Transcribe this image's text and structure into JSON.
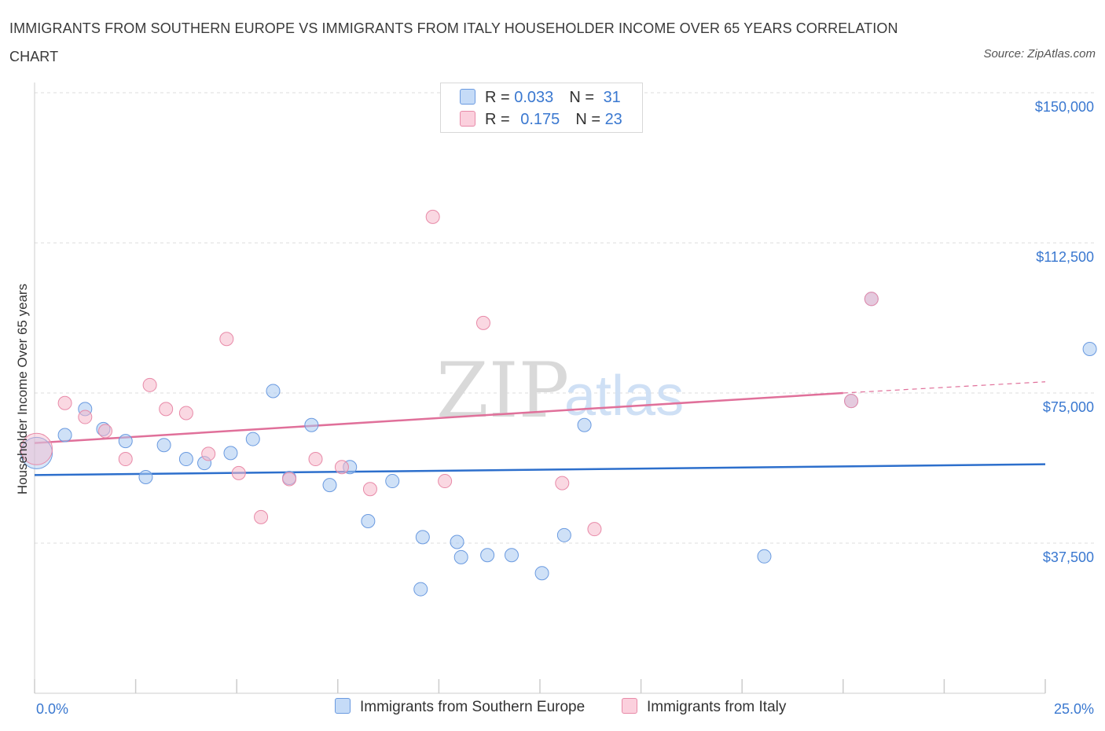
{
  "title": "IMMIGRANTS FROM SOUTHERN EUROPE VS IMMIGRANTS FROM ITALY HOUSEHOLDER INCOME OVER 65 YEARS CORRELATION CHART",
  "source": "Source: ZipAtlas.com",
  "watermark": {
    "zip": "ZIP",
    "atlas": "atlas"
  },
  "legend_top": [
    {
      "r_label": "R = ",
      "r_value": "0.033",
      "n_label": "N = ",
      "n_value": "31",
      "color": "#a8c8f0"
    },
    {
      "r_label": "R = ",
      "r_value": "0.175",
      "n_label": "N = ",
      "n_value": "23",
      "color": "#f5b8cb"
    }
  ],
  "chart_data": {
    "type": "scatter",
    "ylabel": "Householder Income Over 65 years",
    "xlim": [
      0,
      25
    ],
    "ylim": [
      0,
      150000
    ],
    "x_tick_labels": [
      "0.0%",
      "25.0%"
    ],
    "y_ticks": [
      37500,
      75000,
      112500,
      150000
    ],
    "y_tick_labels": [
      "$37,500",
      "$75,000",
      "$112,500",
      "$150,000"
    ],
    "grid": "horizontal dashed",
    "legend_position": "top-center",
    "series": [
      {
        "name": "Immigrants from Southern Europe",
        "color": "#a8c8f0",
        "stroke": "#6a9ae0",
        "trend_color": "#2d6fcc",
        "trend": {
          "x": [
            0,
            25
          ],
          "y": [
            54500,
            57200
          ]
        },
        "points": [
          {
            "x": 0.05,
            "y": 60000,
            "big": true
          },
          {
            "x": 0.75,
            "y": 64500
          },
          {
            "x": 1.25,
            "y": 71000
          },
          {
            "x": 1.7,
            "y": 66000
          },
          {
            "x": 2.25,
            "y": 63000
          },
          {
            "x": 2.75,
            "y": 54000
          },
          {
            "x": 3.2,
            "y": 62000
          },
          {
            "x": 3.75,
            "y": 58500
          },
          {
            "x": 4.2,
            "y": 57500
          },
          {
            "x": 4.85,
            "y": 60000
          },
          {
            "x": 5.4,
            "y": 63500
          },
          {
            "x": 5.9,
            "y": 75500
          },
          {
            "x": 6.3,
            "y": 53800
          },
          {
            "x": 6.85,
            "y": 67000
          },
          {
            "x": 7.3,
            "y": 52000
          },
          {
            "x": 7.8,
            "y": 56500
          },
          {
            "x": 8.25,
            "y": 43000
          },
          {
            "x": 8.85,
            "y": 53000
          },
          {
            "x": 9.6,
            "y": 39000
          },
          {
            "x": 9.55,
            "y": 26000
          },
          {
            "x": 10.45,
            "y": 37800
          },
          {
            "x": 10.55,
            "y": 34000
          },
          {
            "x": 11.2,
            "y": 34500
          },
          {
            "x": 11.8,
            "y": 34500
          },
          {
            "x": 12.55,
            "y": 30000
          },
          {
            "x": 13.1,
            "y": 39500
          },
          {
            "x": 13.6,
            "y": 67000
          },
          {
            "x": 18.05,
            "y": 34200
          },
          {
            "x": 20.2,
            "y": 73000
          },
          {
            "x": 20.7,
            "y": 98500
          },
          {
            "x": 26.1,
            "y": 86000
          }
        ]
      },
      {
        "name": "Immigrants from Italy",
        "color": "#f5b8cb",
        "stroke": "#e88aa8",
        "trend_color": "#e0709a",
        "trend": {
          "x": [
            0,
            20
          ],
          "y": [
            62500,
            75000
          ],
          "dashed_to": {
            "x": 25,
            "y": 77800
          }
        },
        "points": [
          {
            "x": 0.05,
            "y": 61000,
            "big": true
          },
          {
            "x": 0.75,
            "y": 72500
          },
          {
            "x": 1.25,
            "y": 69000
          },
          {
            "x": 1.75,
            "y": 65500
          },
          {
            "x": 2.25,
            "y": 58500
          },
          {
            "x": 2.85,
            "y": 77000
          },
          {
            "x": 3.25,
            "y": 71000
          },
          {
            "x": 3.75,
            "y": 70000
          },
          {
            "x": 4.3,
            "y": 59800
          },
          {
            "x": 4.75,
            "y": 88500
          },
          {
            "x": 5.05,
            "y": 55000
          },
          {
            "x": 5.6,
            "y": 44000
          },
          {
            "x": 6.3,
            "y": 53500
          },
          {
            "x": 6.95,
            "y": 58500
          },
          {
            "x": 7.6,
            "y": 56500
          },
          {
            "x": 8.3,
            "y": 51000
          },
          {
            "x": 9.85,
            "y": 119000
          },
          {
            "x": 10.15,
            "y": 53000
          },
          {
            "x": 11.1,
            "y": 92500
          },
          {
            "x": 13.05,
            "y": 52500
          },
          {
            "x": 13.85,
            "y": 41000
          },
          {
            "x": 20.2,
            "y": 73000
          },
          {
            "x": 20.7,
            "y": 98500
          }
        ]
      }
    ]
  }
}
